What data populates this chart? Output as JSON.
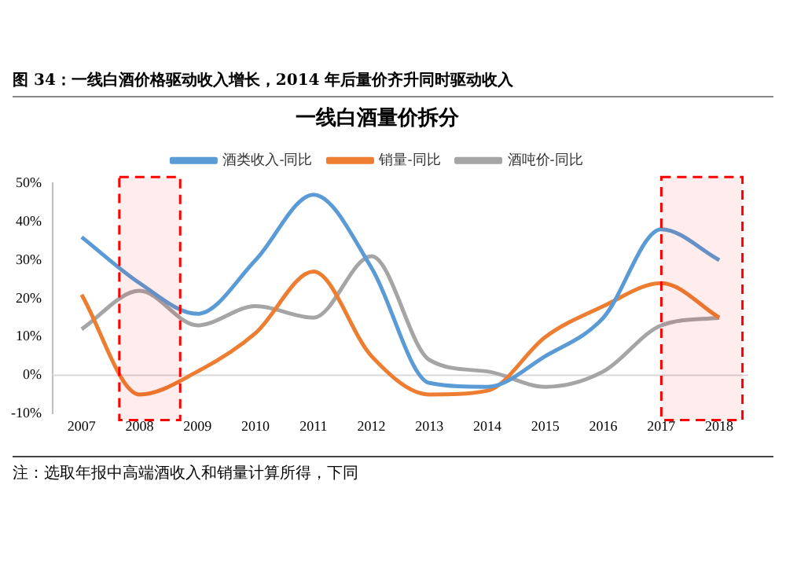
{
  "chart_data": {
    "type": "line",
    "title": "图 34：一线白酒价格驱动收入增长，2014 年后量价齐升同时驱动收入",
    "subtitle": "一线白酒量价拆分",
    "x": [
      2007,
      2008,
      2009,
      2010,
      2011,
      2012,
      2013,
      2014,
      2015,
      2016,
      2017,
      2018
    ],
    "series": [
      {
        "name": "酒类收入-同比",
        "color": "#5b9bd5",
        "values": [
          36,
          24,
          16,
          30,
          47,
          28,
          -2,
          -3,
          5,
          15,
          38,
          30
        ]
      },
      {
        "name": "销量-同比",
        "color": "#ed7d31",
        "values": [
          21,
          -5,
          1,
          11,
          27,
          5,
          -5,
          -4,
          10,
          18,
          24,
          15
        ]
      },
      {
        "name": "酒吨价-同比",
        "color": "#a5a5a5",
        "values": [
          12,
          22,
          13,
          18,
          15,
          31,
          4,
          1,
          -3,
          1,
          13,
          15
        ]
      }
    ],
    "xlim": [
      2006.5,
      2018.5
    ],
    "xticks": [
      2007,
      2008,
      2009,
      2010,
      2011,
      2012,
      2013,
      2014,
      2015,
      2016,
      2017,
      2018
    ],
    "ylim": [
      -10,
      50
    ],
    "yticks": [
      {
        "value": -10,
        "label": "-10%"
      },
      {
        "value": 0,
        "label": "0%"
      },
      {
        "value": 10,
        "label": "10%"
      },
      {
        "value": 20,
        "label": "20%"
      },
      {
        "value": 30,
        "label": "30%"
      },
      {
        "value": 40,
        "label": "40%"
      },
      {
        "value": 50,
        "label": "50%"
      }
    ],
    "bands": [
      {
        "axis": "x",
        "from": 2007.65,
        "to": 2008.7,
        "color": "#ff0000"
      },
      {
        "axis": "x",
        "from": 2017,
        "to": 2018.4,
        "color": "#ff0000"
      }
    ],
    "ref_lines": [
      {
        "axis": "y",
        "value": 0,
        "color": "#d9d9d9"
      }
    ],
    "grid": false,
    "legend": "top",
    "marker": "none",
    "line_style": "solid",
    "annotations": [
      "注：选取年报中高端酒收入和销量计算所得，下同"
    ]
  }
}
